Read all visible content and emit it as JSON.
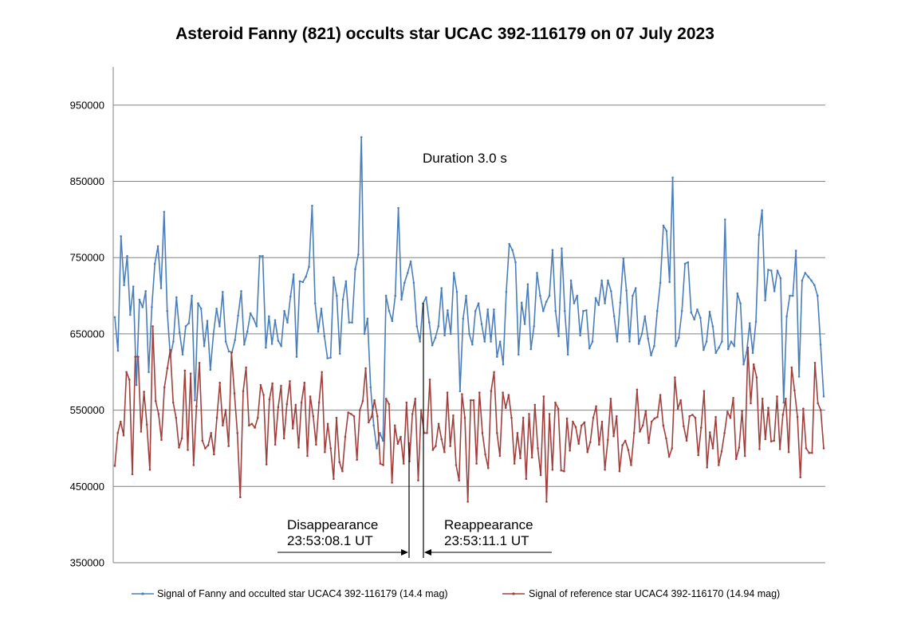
{
  "chart_data": {
    "type": "line",
    "title": "Asteroid Fanny (821) occults star UCAC 392-116179 on 07 July 2023",
    "xlabel": "",
    "ylabel": "",
    "ylim": [
      350000,
      1000000
    ],
    "yticks": [
      350000,
      450000,
      550000,
      650000,
      750000,
      850000,
      950000
    ],
    "ytick_labels": [
      "350000",
      "450000",
      "550000",
      "650000",
      "750000",
      "850000",
      "950000"
    ],
    "grid": "horizontal",
    "legend_position": "bottom",
    "series": [
      {
        "name": "Signal of Fanny and occulted star UCAC4 392-116179 (14.4 mag)",
        "color": "#4a7ebb",
        "values": [
          672000,
          628000,
          778000,
          714000,
          752000,
          675000,
          712000,
          583000,
          695000,
          685000,
          706000,
          600000,
          685000,
          742000,
          765000,
          710000,
          810000,
          680000,
          620000,
          640000,
          698000,
          652000,
          623000,
          660000,
          664000,
          700000,
          563000,
          690000,
          683000,
          634000,
          667000,
          603000,
          650000,
          683000,
          660000,
          705000,
          640000,
          627000,
          626000,
          642000,
          674000,
          706000,
          636000,
          653000,
          677000,
          670000,
          660000,
          752000,
          752000,
          632000,
          673000,
          637000,
          668000,
          641000,
          634000,
          680000,
          665000,
          699000,
          728000,
          620000,
          719000,
          718000,
          725000,
          738000,
          818000,
          690000,
          653000,
          683000,
          647000,
          618000,
          619000,
          724000,
          700000,
          624000,
          695000,
          719000,
          665000,
          665000,
          735000,
          754000,
          908000,
          650000,
          670000,
          580000,
          530000,
          500000,
          520000,
          510000,
          700000,
          680000,
          667000,
          700000,
          815000,
          695000,
          717000,
          730000,
          745000,
          717000,
          660000,
          640000,
          690000,
          698000,
          665000,
          635000,
          645000,
          660000,
          710000,
          648000,
          681000,
          650000,
          730000,
          705000,
          575000,
          670000,
          700000,
          650000,
          636000,
          680000,
          690000,
          663000,
          640000,
          682000,
          640000,
          682000,
          620000,
          640000,
          610000,
          705000,
          768000,
          760000,
          744000,
          623000,
          691000,
          663000,
          715000,
          630000,
          660000,
          730000,
          700000,
          680000,
          692000,
          700000,
          760000,
          680000,
          647000,
          762000,
          680000,
          623000,
          720000,
          690000,
          700000,
          648000,
          680000,
          681000,
          631000,
          640000,
          697000,
          688000,
          720000,
          690000,
          720000,
          706000,
          673000,
          640000,
          691000,
          749000,
          707000,
          640000,
          700000,
          710000,
          637000,
          650000,
          673000,
          644000,
          622000,
          634000,
          680000,
          717000,
          792000,
          785000,
          718000,
          855000,
          634000,
          645000,
          680000,
          742000,
          744000,
          678000,
          669000,
          682000,
          671000,
          629000,
          640000,
          679000,
          660000,
          625000,
          632000,
          640000,
          800000,
          630000,
          640000,
          634000,
          703000,
          690000,
          610000,
          626000,
          664000,
          625000,
          666000,
          780000,
          812000,
          694000,
          734000,
          733000,
          706000,
          733000,
          723000,
          560000,
          673000,
          700000,
          700000,
          759000,
          594000,
          720000,
          730000,
          725000,
          720000,
          714000,
          700000,
          636000,
          568000
        ]
      },
      {
        "name": "Signal of reference star UCAC4 392-116170 (14.94 mag)",
        "color": "#a0403c",
        "values": [
          477000,
          520000,
          535000,
          517000,
          600000,
          590000,
          466000,
          620000,
          620000,
          522000,
          574000,
          531000,
          472000,
          660000,
          562000,
          545000,
          511000,
          580000,
          605000,
          629000,
          560000,
          540000,
          501000,
          513000,
          602000,
          498000,
          598000,
          478000,
          555000,
          612000,
          510000,
          500000,
          504000,
          520000,
          492000,
          540000,
          586000,
          530000,
          550000,
          503000,
          625000,
          572000,
          520000,
          436000,
          575000,
          606000,
          530000,
          532000,
          527000,
          540000,
          583000,
          570000,
          479000,
          564000,
          585000,
          505000,
          554000,
          582000,
          513000,
          558000,
          588000,
          526000,
          557000,
          501000,
          560000,
          586000,
          490000,
          568000,
          542000,
          505000,
          560000,
          600000,
          495000,
          532000,
          500000,
          460000,
          540000,
          482000,
          470000,
          515000,
          547000,
          545000,
          542000,
          485000,
          550000,
          562000,
          605000,
          534000,
          541000,
          563000,
          542000,
          480000,
          478000,
          565000,
          558000,
          455000,
          530000,
          506000,
          515000,
          480000,
          560000,
          483000,
          545000,
          565000,
          458000,
          550000,
          520000,
          520000,
          590000,
          498000,
          503000,
          532000,
          512000,
          495000,
          573000,
          503000,
          543000,
          478000,
          458000,
          571000,
          540000,
          430000,
          563000,
          563000,
          480000,
          573000,
          520000,
          492000,
          474000,
          575000,
          600000,
          520000,
          490000,
          573000,
          553000,
          570000,
          540000,
          480000,
          520000,
          487000,
          540000,
          460000,
          545000,
          488000,
          557000,
          500000,
          465000,
          568000,
          430000,
          545000,
          472000,
          560000,
          552000,
          471000,
          470000,
          539000,
          497000,
          535000,
          528000,
          506000,
          530000,
          534000,
          495000,
          508000,
          540000,
          555000,
          505000,
          535000,
          472000,
          511000,
          565000,
          516000,
          542000,
          470000,
          504000,
          510000,
          498000,
          478000,
          520000,
          577000,
          522000,
          530000,
          549000,
          507000,
          535000,
          539000,
          541000,
          570000,
          530000,
          513000,
          489000,
          500000,
          593000,
          552000,
          563000,
          529000,
          510000,
          542000,
          544000,
          540000,
          491000,
          527000,
          575000,
          475000,
          521000,
          500000,
          541000,
          478000,
          496000,
          520000,
          548000,
          540000,
          566000,
          486000,
          501000,
          549000,
          490000,
          632000,
          559000,
          610000,
          593000,
          499000,
          565000,
          512000,
          553000,
          509000,
          510000,
          568000,
          499000,
          544000,
          565000,
          495000,
          606000,
          576000,
          541000,
          462000,
          552000,
          500000,
          494000,
          494000,
          612000,
          559000,
          550000,
          500000
        ]
      }
    ],
    "annotations": {
      "duration": "Duration 3.0 s",
      "disappearance_label": "Disappearance",
      "disappearance_time": "23:53:08.1 UT",
      "reappearance_label": "Reappearance",
      "reappearance_time": "23:53:11.1 UT"
    }
  }
}
